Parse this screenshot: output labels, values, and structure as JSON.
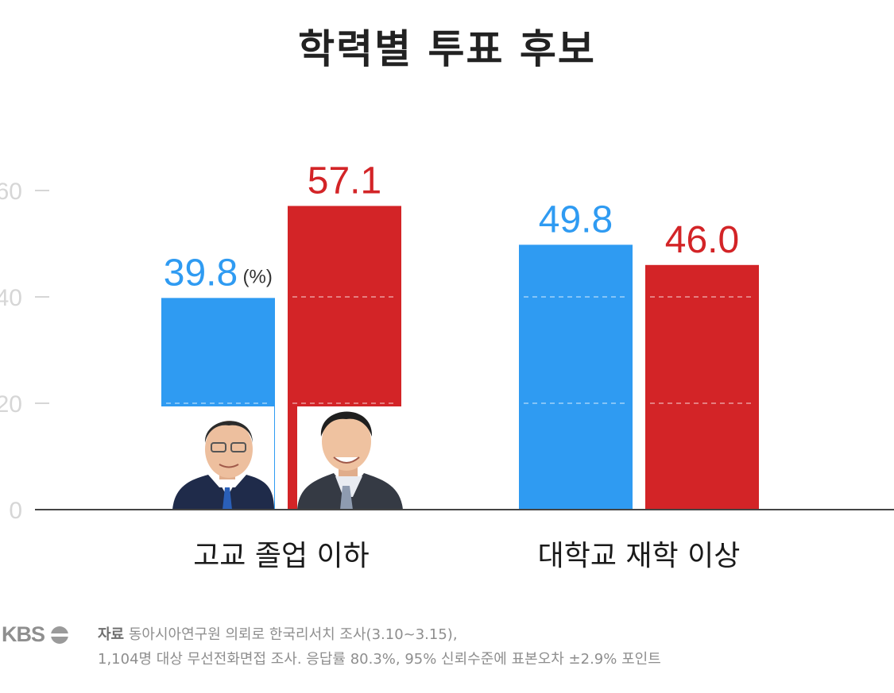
{
  "chart_data": {
    "type": "bar",
    "title": "학력별 투표 후보",
    "categories": [
      "고교 졸업 이하",
      "대학교 재학 이상"
    ],
    "series": [
      {
        "values": [
          39.8,
          49.8
        ],
        "color": "#2f9bf2",
        "labels": [
          "39.8",
          "49.8"
        ]
      },
      {
        "values": [
          57.1,
          46.0
        ],
        "color": "#d32427",
        "labels": [
          "57.1",
          "46.0"
        ]
      }
    ],
    "unit_annotation": "(%)",
    "yticks": [
      "0",
      "20",
      "40",
      "60"
    ],
    "ylim": [
      0,
      60
    ],
    "grid": "dashed"
  },
  "footer": {
    "logo": "KBS",
    "source_label": "자료",
    "source_line1": "동아시아연구원 의뢰로 한국리서치 조사(3.10~3.15),",
    "source_line2": "1,104명 대상 무선전화면접 조사. 응답률 80.3%, 95% 신뢰수준에 표본오차 ±2.9% 포인트"
  },
  "colors": {
    "blue": "#2f9bf2",
    "red": "#d32427",
    "axis": "#444444",
    "tick": "#d6d6d6"
  }
}
